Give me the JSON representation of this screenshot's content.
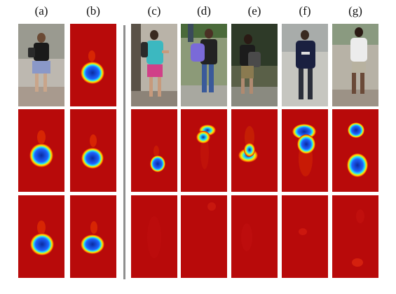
{
  "figure": {
    "labels": [
      "(a)",
      "(b)",
      "(c)",
      "(d)",
      "(e)",
      "(f)",
      "(g)"
    ],
    "columns": [
      {
        "id": "a",
        "rows": [
          "photo-backpack-woman",
          "heatmap-blob-center",
          "heatmap-blob-center"
        ]
      },
      {
        "id": "b",
        "rows": [
          "heatmap-blob-center",
          "heatmap-blob-center",
          "heatmap-blob-center"
        ]
      },
      {
        "id": "c",
        "rows": [
          "photo-pink-shorts-woman",
          "heatmap-blob-center",
          "heatmap-faint"
        ]
      },
      {
        "id": "d",
        "rows": [
          "photo-purple-backpack",
          "heatmap-blob-upper",
          "heatmap-faint"
        ]
      },
      {
        "id": "e",
        "rows": [
          "photo-dark-backpack",
          "heatmap-blob-center",
          "heatmap-faint"
        ]
      },
      {
        "id": "f",
        "rows": [
          "photo-navy-hoodie-man",
          "heatmap-blob-upper-large",
          "heatmap-faint"
        ]
      },
      {
        "id": "g",
        "rows": [
          "photo-white-shirt-man",
          "heatmap-two-blobs",
          "heatmap-faint"
        ]
      }
    ]
  }
}
